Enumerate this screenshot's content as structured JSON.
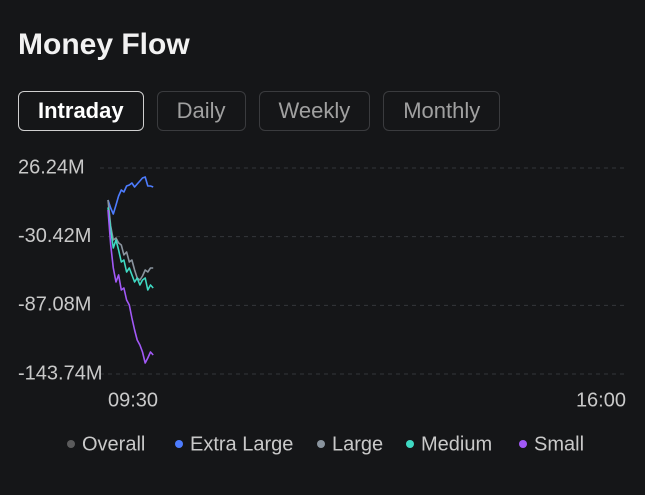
{
  "chart_data": {
    "type": "line",
    "title": "Money Flow",
    "tabs": [
      "Intraday",
      "Daily",
      "Weekly",
      "Monthly"
    ],
    "active_tab": 0,
    "x": [
      "09:30",
      "09:32",
      "09:34",
      "09:36",
      "09:38",
      "09:40",
      "09:42",
      "09:44",
      "09:46",
      "09:48",
      "09:50",
      "09:52",
      "09:54",
      "09:56",
      "09:58",
      "10:00",
      "10:02",
      "10:04"
    ],
    "xlim": [
      "09:30",
      "16:00"
    ],
    "xticks": [
      "09:30",
      "16:00"
    ],
    "ylim": [
      -143.74,
      26.24
    ],
    "yticks": [
      {
        "value": 26.24,
        "label": "26.24M"
      },
      {
        "value": -30.42,
        "label": "-30.42M"
      },
      {
        "value": -87.08,
        "label": "-87.08M"
      },
      {
        "value": -143.74,
        "label": "-143.74M"
      }
    ],
    "grid": true,
    "series": [
      {
        "name": "Overall",
        "color": "#8a8a8a",
        "visible": false,
        "values": [
          null,
          null,
          null,
          null,
          null,
          null,
          null,
          null,
          null,
          null,
          null,
          null,
          null,
          null,
          null,
          null,
          null,
          null
        ]
      },
      {
        "name": "Extra Large",
        "color": "#4d7cfe",
        "visible": true,
        "values": [
          -0.2,
          -6.8,
          -11.7,
          -4.3,
          3.1,
          8.1,
          6.4,
          11.4,
          12.2,
          13.9,
          10.6,
          13.0,
          15.5,
          18.0,
          18.8,
          11.4,
          11.4,
          10.6
        ]
      },
      {
        "name": "Large",
        "color": "#8a949e",
        "visible": true,
        "values": [
          -0.2,
          -21.6,
          -33.2,
          -31.5,
          -35.6,
          -37.3,
          -45.5,
          -43.1,
          -51.3,
          -49.7,
          -57.9,
          -64.5,
          -66.2,
          -62.9,
          -57.9,
          -59.6,
          -56.3,
          -56.3
        ]
      },
      {
        "name": "Medium",
        "color": "#3fd9c3",
        "visible": true,
        "values": [
          -6.3,
          -24.9,
          -39.8,
          -33.2,
          -41.4,
          -51.3,
          -49.7,
          -59.6,
          -56.3,
          -62.0,
          -67.8,
          -64.5,
          -70.3,
          -66.2,
          -64.5,
          -74.4,
          -70.3,
          -72.8
        ]
      },
      {
        "name": "Small",
        "color": "#a259f7",
        "visible": true,
        "values": [
          -8.4,
          -37.3,
          -56.3,
          -67.8,
          -62.0,
          -74.4,
          -72.8,
          -82.7,
          -86.8,
          -97.5,
          -107.4,
          -115.7,
          -119.8,
          -125.6,
          -134.7,
          -130.5,
          -125.6,
          -128.1
        ]
      }
    ]
  }
}
